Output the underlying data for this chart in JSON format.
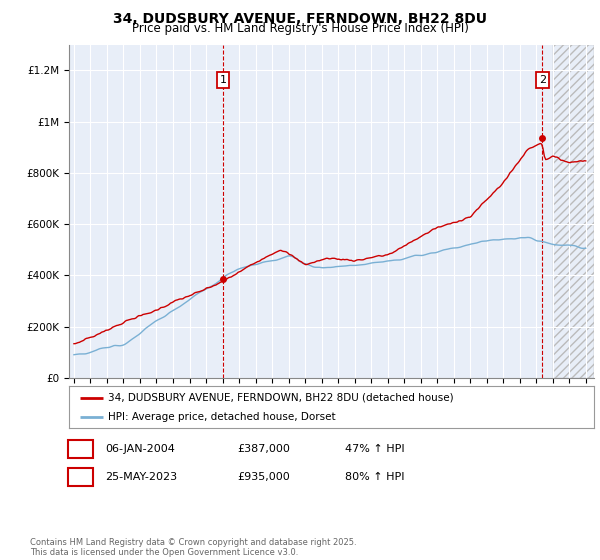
{
  "title": "34, DUDSBURY AVENUE, FERNDOWN, BH22 8DU",
  "subtitle": "Price paid vs. HM Land Registry's House Price Index (HPI)",
  "ylabel_ticks": [
    "£0",
    "£200K",
    "£400K",
    "£600K",
    "£800K",
    "£1M",
    "£1.2M"
  ],
  "ytick_values": [
    0,
    200000,
    400000,
    600000,
    800000,
    1000000,
    1200000
  ],
  "ylim": [
    0,
    1300000
  ],
  "xlim_start": 1994.7,
  "xlim_end": 2026.5,
  "hatch_start": 2024.0,
  "red_line_color": "#cc0000",
  "blue_line_color": "#7ab0d4",
  "marker1_x": 2004.04,
  "marker1_y": 387000,
  "marker2_x": 2023.38,
  "marker2_y": 935000,
  "marker_color": "#cc0000",
  "vline1_x": 2004.04,
  "vline2_x": 2023.38,
  "legend_line1": "34, DUDSBURY AVENUE, FERNDOWN, BH22 8DU (detached house)",
  "legend_line2": "HPI: Average price, detached house, Dorset",
  "table_row1_num": "1",
  "table_row1_date": "06-JAN-2004",
  "table_row1_price": "£387,000",
  "table_row1_hpi": "47% ↑ HPI",
  "table_row2_num": "2",
  "table_row2_date": "25-MAY-2023",
  "table_row2_price": "£935,000",
  "table_row2_hpi": "80% ↑ HPI",
  "footnote": "Contains HM Land Registry data © Crown copyright and database right 2025.\nThis data is licensed under the Open Government Licence v3.0.",
  "bg_color": "#ffffff",
  "plot_bg_color": "#e8eef8",
  "grid_color": "#ffffff",
  "hatch_color": "#cccccc",
  "title_fontsize": 10,
  "subtitle_fontsize": 8.5
}
